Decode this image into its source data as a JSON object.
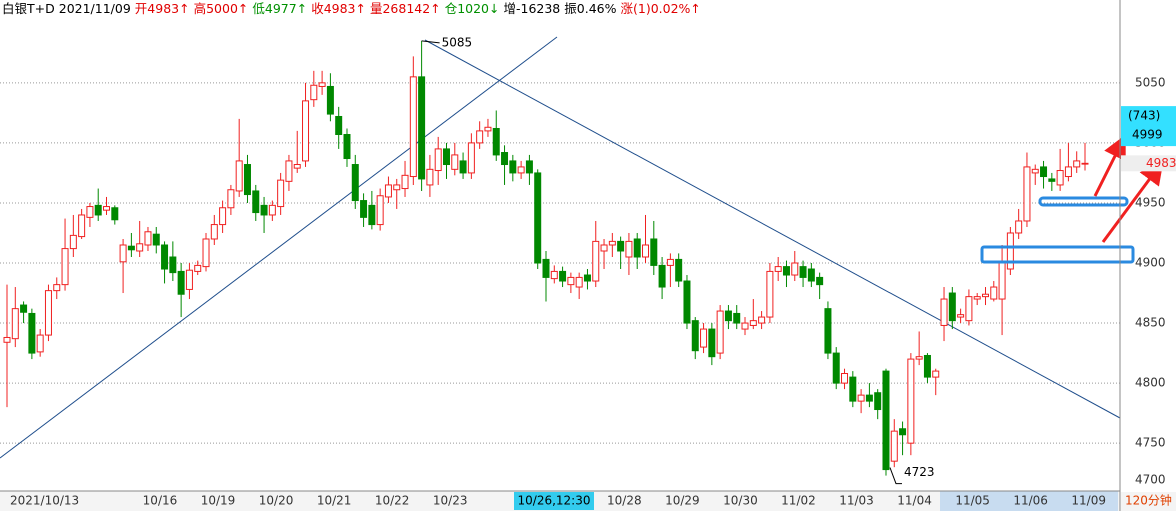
{
  "chart_data": {
    "type": "candlestick",
    "header": [
      {
        "text": "白银T+D",
        "color": "#000000"
      },
      {
        "text": "2021/11/09",
        "color": "#000000"
      },
      {
        "text": "开4983↑",
        "color": "#e00000"
      },
      {
        "text": "高5000↑",
        "color": "#e00000"
      },
      {
        "text": "低4977↑",
        "color": "#009000"
      },
      {
        "text": "收4983↑",
        "color": "#e00000"
      },
      {
        "text": "量268142↑",
        "color": "#e00000"
      },
      {
        "text": "仓1020↓",
        "color": "#009000"
      },
      {
        "text": "增-16238",
        "color": "#000000"
      },
      {
        "text": "振0.46%",
        "color": "#000000"
      },
      {
        "text": "涨(1)0.02%↑",
        "color": "#e00000"
      }
    ],
    "up_color": "#f02020",
    "down_color": "#008800",
    "categories": [
      "2021/10/13",
      null,
      null,
      null,
      null,
      null,
      null,
      null,
      null,
      null,
      null,
      null,
      null,
      null,
      null,
      null,
      "10/16",
      null,
      null,
      null,
      null,
      null,
      null,
      "10/19",
      null,
      null,
      null,
      null,
      null,
      null,
      "10/20",
      null,
      null,
      null,
      null,
      null,
      null,
      "10/21",
      null,
      null,
      null,
      null,
      null,
      null,
      "10/22",
      null,
      null,
      null,
      null,
      null,
      null,
      "10/23",
      null,
      null,
      null,
      null,
      null,
      null,
      null,
      null,
      null,
      null,
      null,
      null,
      null,
      null,
      null,
      null,
      null,
      null,
      null,
      null,
      "10/28",
      null,
      null,
      null,
      null,
      null,
      null,
      "10/29",
      null,
      null,
      null,
      null,
      null,
      null,
      "10/30",
      null,
      null,
      null,
      null,
      null,
      null,
      "11/02",
      null,
      null,
      null,
      null,
      null,
      null,
      "11/03",
      null,
      null,
      null,
      null,
      null,
      null,
      "11/04",
      null,
      null,
      null,
      null,
      null,
      null,
      "11/05",
      null,
      null,
      null,
      null,
      null,
      null,
      "11/06",
      null,
      null,
      null,
      null,
      null,
      null,
      "11/09",
      null,
      null
    ],
    "open": [
      4834,
      4837,
      4865,
      4858,
      4826,
      4840,
      4877,
      4882,
      4912,
      4922,
      4938,
      4948,
      4944,
      4946,
      4901,
      4914,
      4910,
      4915,
      4924,
      4915,
      4905,
      4893,
      4878,
      4893,
      4897,
      4920,
      4932,
      4946,
      4960,
      4982,
      4960,
      4948,
      4940,
      4947,
      4968,
      4979,
      4985,
      5036,
      5047,
      5047,
      5022,
      5007,
      4982,
      4952,
      4948,
      4932,
      4955,
      4961,
      4962,
      4972,
      5055,
      4965,
      4977,
      4995,
      4978,
      4985,
      4975,
      5000,
      5010,
      5012,
      4992,
      4985,
      4975,
      4985,
      4975,
      4903,
      4887,
      4893,
      4882,
      4880,
      4890,
      4885,
      4910,
      4915,
      4918,
      4905,
      4920,
      4905,
      4920,
      4898,
      4898,
      4903,
      4885,
      4852,
      4830,
      4845,
      4825,
      4860,
      4858,
      4845,
      4848,
      4850,
      4855,
      4893,
      4897,
      4890,
      4897,
      4895,
      4888,
      4862,
      4825,
      4800,
      4805,
      4785,
      4790,
      4792,
      4810,
      4735,
      4762,
      4750,
      4820,
      4823,
      4805,
      4848,
      4875,
      4855,
      4852,
      4870,
      4872,
      4870,
      4870,
      4895,
      4925,
      4935,
      4975,
      4980,
      4970,
      4965,
      4972,
      4980,
      4983
    ],
    "high": [
      4882,
      4880,
      4868,
      4862,
      4845,
      4882,
      4888,
      4937,
      4940,
      4945,
      4950,
      4962,
      4955,
      4948,
      4920,
      4925,
      4935,
      4930,
      4930,
      4918,
      4918,
      4900,
      4900,
      4902,
      4925,
      4940,
      4952,
      4965,
      5020,
      4990,
      4965,
      4955,
      4952,
      4975,
      4990,
      5010,
      5050,
      5060,
      5060,
      5058,
      5030,
      5012,
      4990,
      4958,
      4960,
      4962,
      4972,
      4970,
      4985,
      5072,
      5085,
      4990,
      5005,
      5000,
      5000,
      4992,
      5008,
      5018,
      5020,
      5027,
      4998,
      4990,
      4985,
      4990,
      4978,
      4910,
      4898,
      4897,
      4892,
      4892,
      4895,
      4935,
      4920,
      4925,
      4922,
      4925,
      4925,
      4940,
      4935,
      4905,
      4908,
      4908,
      4890,
      4855,
      4850,
      4850,
      4865,
      4865,
      4865,
      4855,
      4870,
      4860,
      4900,
      4905,
      4902,
      4910,
      4902,
      4900,
      4892,
      4868,
      4830,
      4812,
      4810,
      4795,
      4800,
      4795,
      4812,
      4770,
      4768,
      4825,
      4843,
      4825,
      4812,
      4880,
      4880,
      4862,
      4878,
      4875,
      4880,
      4885,
      4915,
      4930,
      4945,
      4992,
      4982,
      4985,
      4975,
      4995,
      5000,
      4993,
      5000
    ],
    "low": [
      4780,
      4830,
      4850,
      4820,
      4822,
      4835,
      4870,
      4877,
      4905,
      4920,
      4930,
      4935,
      4940,
      4932,
      4875,
      4905,
      4905,
      4910,
      4908,
      4883,
      4885,
      4855,
      4870,
      4890,
      4893,
      4915,
      4925,
      4940,
      4955,
      4950,
      4935,
      4925,
      4935,
      4940,
      4960,
      4975,
      4980,
      5030,
      5040,
      5018,
      4995,
      4980,
      4945,
      4930,
      4928,
      4927,
      4950,
      4945,
      4955,
      4965,
      4960,
      4955,
      4965,
      4970,
      4973,
      4970,
      4970,
      4995,
      5005,
      4985,
      4965,
      4968,
      4970,
      4965,
      4895,
      4868,
      4883,
      4880,
      4875,
      4870,
      4878,
      4880,
      4895,
      4905,
      4895,
      4890,
      4895,
      4900,
      4890,
      4870,
      4880,
      4880,
      4845,
      4820,
      4825,
      4815,
      4820,
      4845,
      4845,
      4840,
      4845,
      4845,
      4850,
      4885,
      4880,
      4885,
      4880,
      4880,
      4870,
      4820,
      4795,
      4795,
      4780,
      4775,
      4780,
      4770,
      4723,
      4730,
      4740,
      4740,
      4815,
      4800,
      4790,
      4835,
      4845,
      4850,
      4848,
      4865,
      4865,
      4868,
      4840,
      4890,
      4920,
      4930,
      4965,
      4962,
      4960,
      4960,
      4968,
      4975,
      4977
    ],
    "close": [
      4838,
      4862,
      4859,
      4825,
      4840,
      4877,
      4882,
      4912,
      4923,
      4940,
      4947,
      4940,
      4947,
      4936,
      4915,
      4911,
      4916,
      4926,
      4915,
      4895,
      4892,
      4874,
      4894,
      4898,
      4920,
      4932,
      4946,
      4961,
      4985,
      4957,
      4942,
      4940,
      4948,
      4969,
      4985,
      4982,
      5035,
      5048,
      5050,
      5024,
      5007,
      4987,
      4952,
      4938,
      4932,
      4956,
      4965,
      4965,
      4973,
      5055,
      4970,
      4978,
      4995,
      4982,
      4990,
      4975,
      5000,
      5010,
      5013,
      4990,
      4982,
      4975,
      4980,
      4975,
      4900,
      4888,
      4893,
      4885,
      4888,
      4888,
      4885,
      4918,
      4915,
      4918,
      4910,
      4918,
      4905,
      4915,
      4898,
      4880,
      4903,
      4885,
      4850,
      4827,
      4845,
      4822,
      4860,
      4852,
      4850,
      4850,
      4852,
      4855,
      4893,
      4897,
      4890,
      4900,
      4888,
      4885,
      4882,
      4825,
      4800,
      4808,
      4785,
      4790,
      4785,
      4778,
      4728,
      4760,
      4757,
      4820,
      4822,
      4805,
      4810,
      4870,
      4852,
      4857,
      4872,
      4872,
      4874,
      4880,
      4900,
      4925,
      4935,
      4980,
      4978,
      4972,
      4968,
      4977,
      4980,
      4985,
      4983
    ],
    "ylim": [
      4711,
      5104
    ],
    "yticks": [
      4700,
      4750,
      4800,
      4850,
      4900,
      4950,
      5000,
      5050
    ],
    "grid": true,
    "high_label": 5085,
    "low_label": 4723,
    "last_price": 4983,
    "cursor_price": 4999,
    "cursor_count": "(743)",
    "cursor_time": "10/26,12:30",
    "period": "120分钟"
  }
}
